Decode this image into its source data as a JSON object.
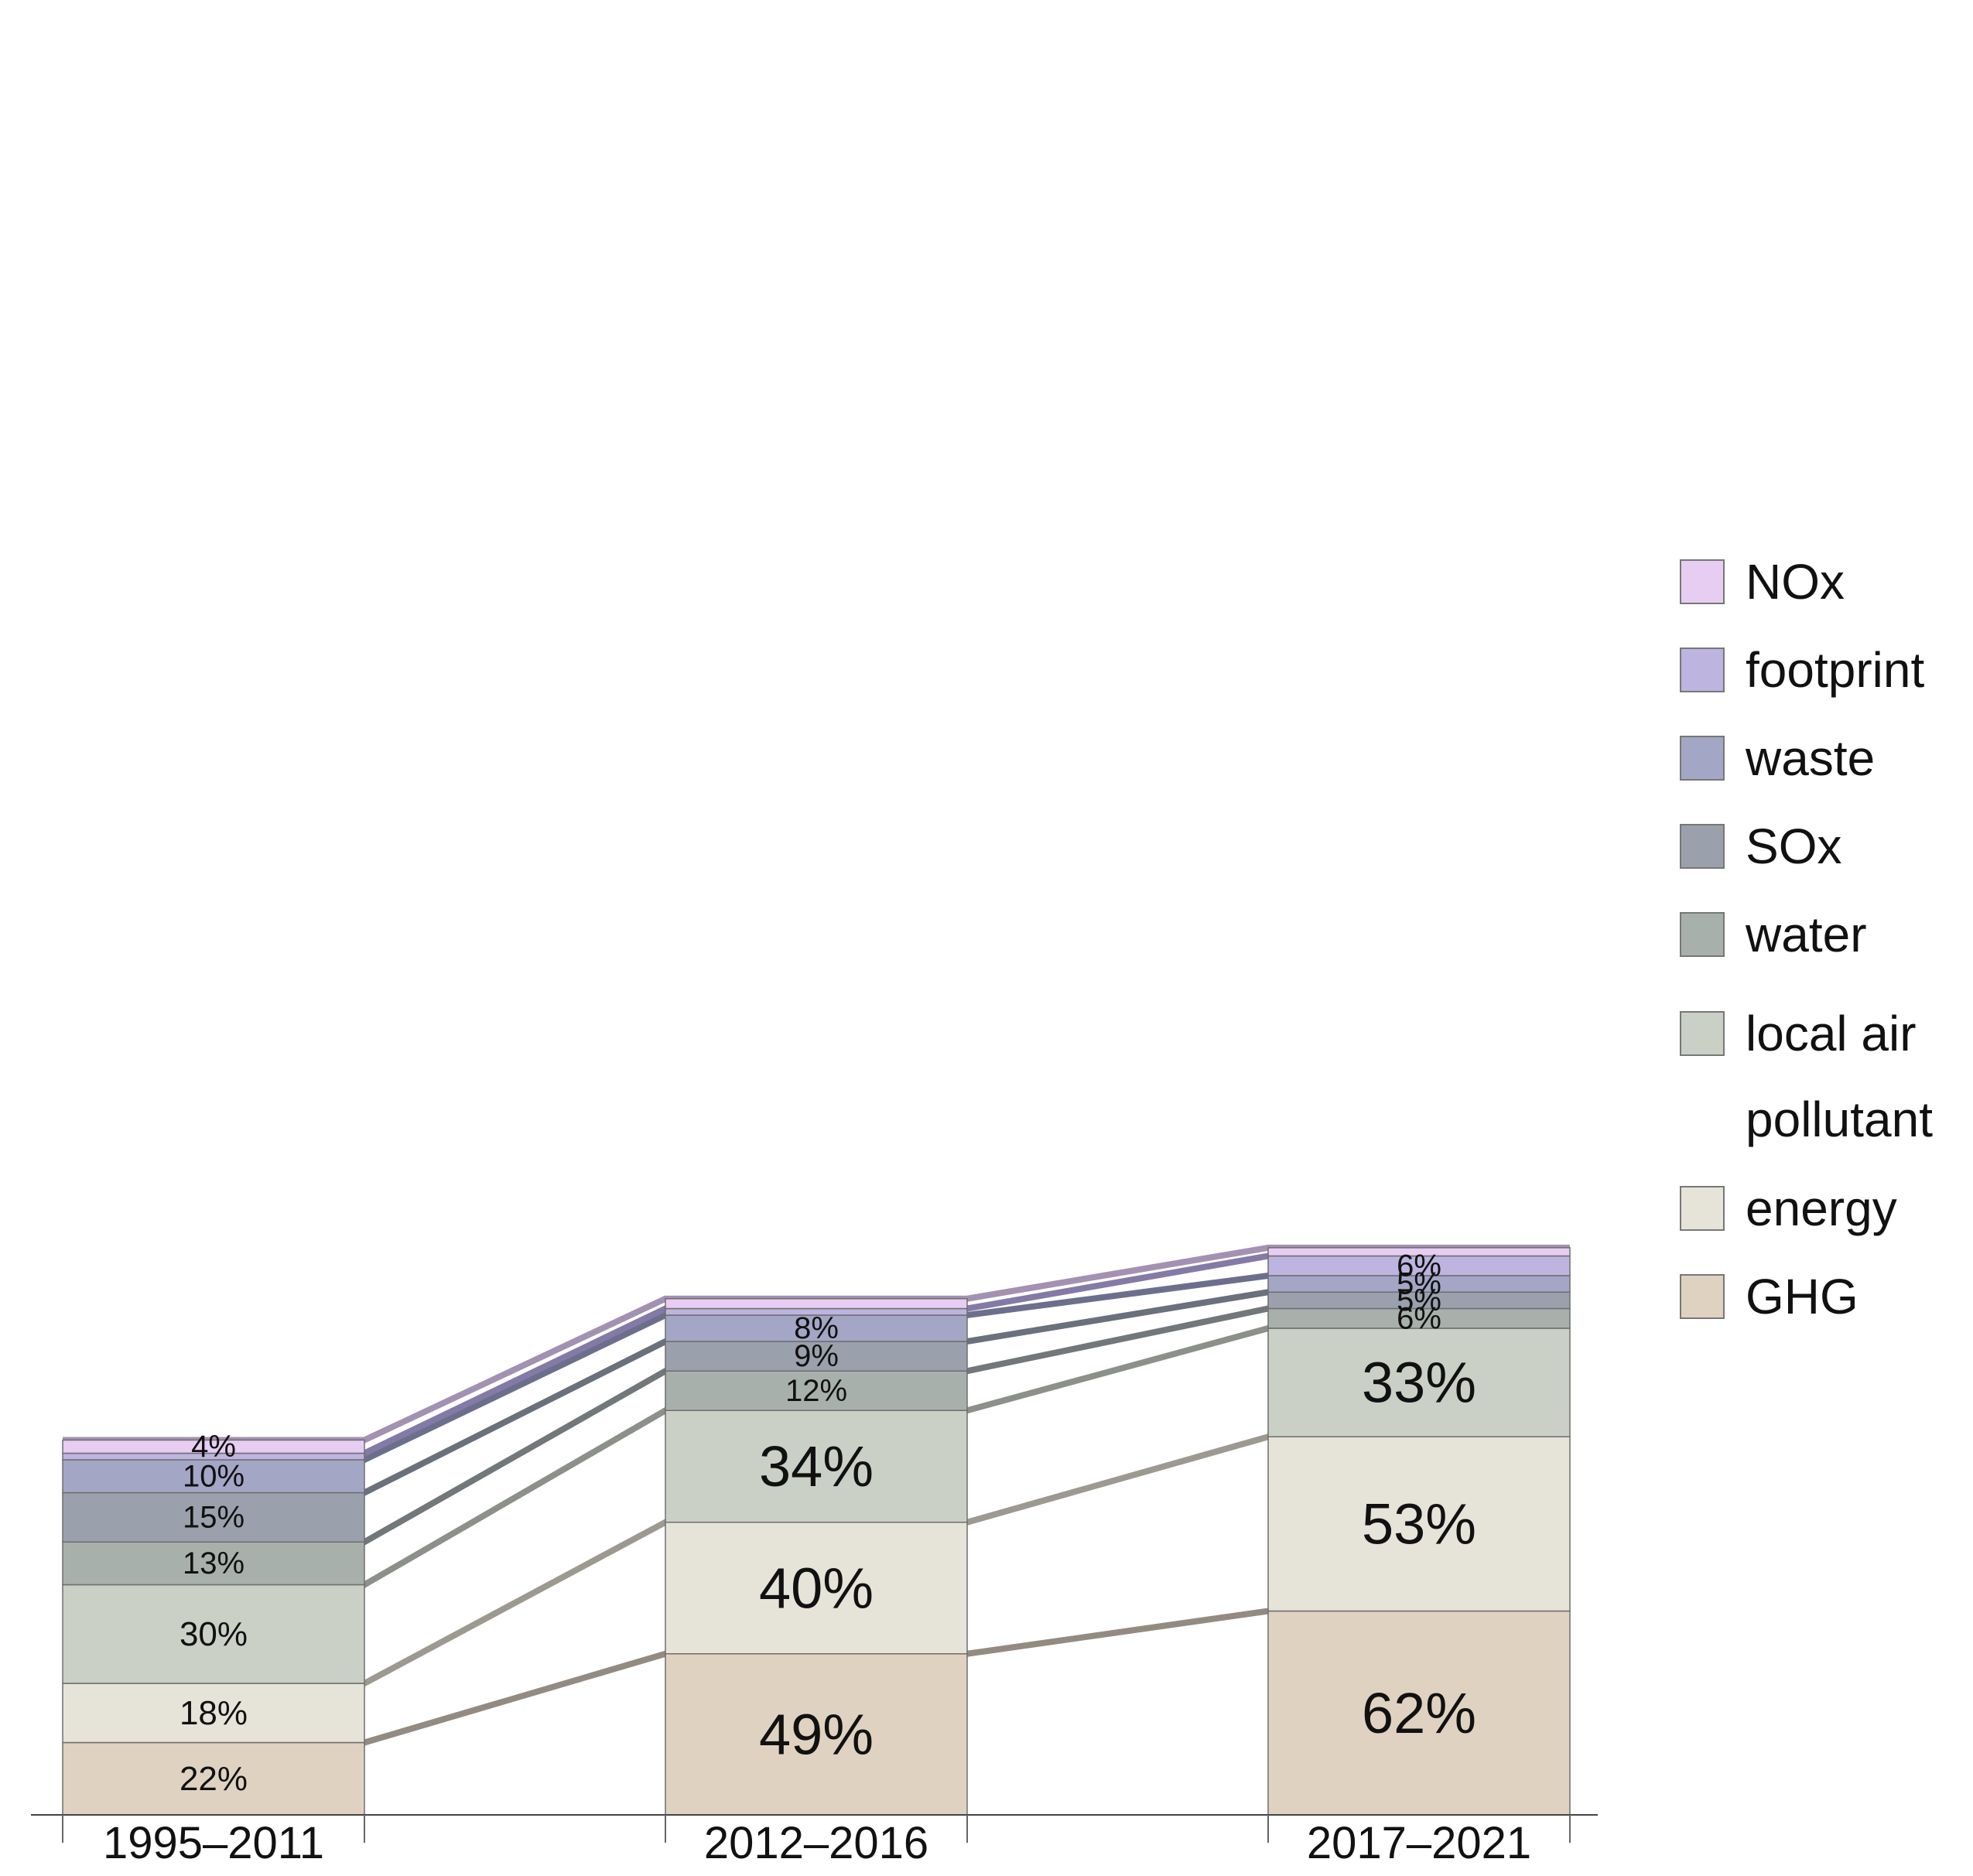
{
  "chart_data": {
    "type": "stacked-bar",
    "title": "",
    "xlabel": "",
    "ylabel": "",
    "categories": [
      "1995–2011",
      "2012–2016",
      "2017–2021"
    ],
    "series": [
      {
        "name": "GHG",
        "color": "#e0d2c1",
        "line": "#938a82",
        "values": [
          22,
          49,
          62
        ],
        "labels": [
          "22%",
          "49%",
          "62%"
        ]
      },
      {
        "name": "energy",
        "color": "#e6e4d9",
        "line": "#9c9a90",
        "values": [
          18,
          40,
          53
        ],
        "labels": [
          "18%",
          "40%",
          "53%"
        ]
      },
      {
        "name": "local air pollutant",
        "color": "#cbd0c6",
        "line": "#8c908a",
        "values": [
          30,
          34,
          33
        ],
        "labels": [
          "30%",
          "34%",
          "33%"
        ]
      },
      {
        "name": "water",
        "color": "#a8b0ab",
        "line": "#72777a",
        "values": [
          13,
          12,
          6
        ],
        "labels": [
          "13%",
          "12%",
          "6%"
        ]
      },
      {
        "name": "SOx",
        "color": "#9aa1ad",
        "line": "#6a707c",
        "values": [
          15,
          9,
          5
        ],
        "labels": [
          "15%",
          "9%",
          "5%"
        ]
      },
      {
        "name": "waste",
        "color": "#a4a6c5",
        "line": "#6c6f8c",
        "values": [
          10,
          8,
          5
        ],
        "labels": [
          "10%",
          "8%",
          "5%"
        ]
      },
      {
        "name": "footprint",
        "color": "#bdb4e0",
        "line": "#837aa6",
        "values": [
          2,
          2,
          6
        ],
        "labels": [
          "",
          "",
          "6%"
        ]
      },
      {
        "name": "NOx",
        "color": "#e8cdf3",
        "line": "#a391b2",
        "values": [
          4,
          3,
          2.5
        ],
        "labels": [
          "4%",
          "",
          ""
        ]
      }
    ],
    "legend": {
      "position": "right",
      "order": [
        "NOx",
        "footprint",
        "waste",
        "SOx",
        "water",
        "local air",
        "energy",
        "GHG"
      ],
      "local_air_second_line": "pollutant"
    }
  }
}
